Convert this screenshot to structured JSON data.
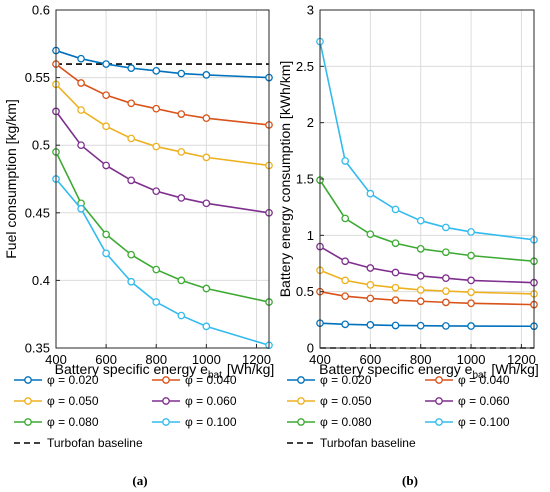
{
  "chart_data": [
    {
      "type": "line",
      "panel_label": "(a)",
      "xlabel": "Battery  specific  energy  e",
      "xlabel_sub": "bat",
      "xlabel_unit": "[Wh/kg]",
      "ylabel": "Fuel consumption [kg/km]",
      "xlim": [
        400,
        1250
      ],
      "ylim": [
        0.35,
        0.6
      ],
      "xticks": [
        "400",
        "600",
        "800",
        "1000",
        "1200"
      ],
      "yticks": [
        "0.35",
        "0.4",
        "0.45",
        "0.5",
        "0.55",
        "0.6"
      ],
      "x": [
        400,
        500,
        600,
        700,
        800,
        900,
        1000,
        1250
      ],
      "grid": true,
      "series": [
        {
          "name": "φ = 0.020",
          "color": "#0072BD",
          "values": [
            0.57,
            0.564,
            0.56,
            0.557,
            0.555,
            0.553,
            0.552,
            0.55
          ]
        },
        {
          "name": "φ = 0.040",
          "color": "#D95319",
          "values": [
            0.56,
            0.546,
            0.537,
            0.531,
            0.527,
            0.523,
            0.52,
            0.515
          ]
        },
        {
          "name": "φ = 0.050",
          "color": "#EDB120",
          "values": [
            0.545,
            0.526,
            0.514,
            0.505,
            0.499,
            0.495,
            0.491,
            0.485
          ]
        },
        {
          "name": "φ = 0.060",
          "color": "#7E2F8E",
          "values": [
            0.525,
            0.5,
            0.485,
            0.474,
            0.466,
            0.461,
            0.457,
            0.45
          ]
        },
        {
          "name": "φ = 0.080",
          "color": "#3CAA32",
          "values": [
            0.495,
            0.457,
            0.434,
            0.419,
            0.408,
            0.4,
            0.394,
            0.384
          ]
        },
        {
          "name": "φ = 0.100",
          "color": "#33BBEE",
          "values": [
            0.475,
            0.453,
            0.42,
            0.399,
            0.384,
            0.374,
            0.366,
            0.352
          ]
        }
      ],
      "baseline": {
        "name": "Turbofan baseline",
        "color": "#000000",
        "value": 0.56
      }
    },
    {
      "type": "line",
      "panel_label": "(b)",
      "xlabel": "Battery  specific  energy  e",
      "xlabel_sub": "bat",
      "xlabel_unit": "[Wh/kg]",
      "ylabel": "Battery energy consumption [kWh/km]",
      "xlim": [
        400,
        1250
      ],
      "ylim": [
        0,
        3
      ],
      "xticks": [
        "400",
        "600",
        "800",
        "1000",
        "1200"
      ],
      "yticks": [
        "0",
        "0.5",
        "1",
        "1.5",
        "2",
        "2.5",
        "3"
      ],
      "x": [
        400,
        500,
        600,
        700,
        800,
        900,
        1000,
        1250
      ],
      "grid": true,
      "series": [
        {
          "name": "φ = 0.020",
          "color": "#0072BD",
          "values": [
            0.22,
            0.21,
            0.205,
            0.2,
            0.198,
            0.196,
            0.195,
            0.193
          ]
        },
        {
          "name": "φ = 0.040",
          "color": "#D95319",
          "values": [
            0.5,
            0.46,
            0.44,
            0.425,
            0.415,
            0.405,
            0.397,
            0.385
          ]
        },
        {
          "name": "φ = 0.050",
          "color": "#EDB120",
          "values": [
            0.69,
            0.6,
            0.56,
            0.535,
            0.515,
            0.505,
            0.495,
            0.48
          ]
        },
        {
          "name": "φ = 0.060",
          "color": "#7E2F8E",
          "values": [
            0.9,
            0.77,
            0.71,
            0.67,
            0.64,
            0.62,
            0.6,
            0.58
          ]
        },
        {
          "name": "φ = 0.080",
          "color": "#3CAA32",
          "values": [
            1.49,
            1.15,
            1.01,
            0.93,
            0.88,
            0.85,
            0.82,
            0.77
          ]
        },
        {
          "name": "φ = 0.100",
          "color": "#33BBEE",
          "values": [
            2.72,
            1.66,
            1.37,
            1.23,
            1.13,
            1.07,
            1.03,
            0.96
          ]
        }
      ],
      "baseline": {
        "name": "Turbofan baseline",
        "color": "#000000",
        "value": 0.0
      }
    }
  ]
}
